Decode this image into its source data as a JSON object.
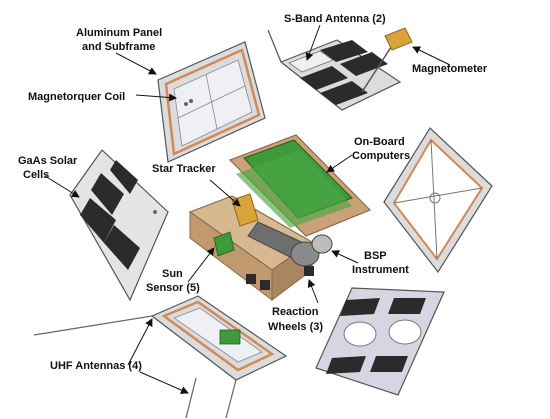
{
  "labels": {
    "aluminum_panel_line1": "Aluminum Panel",
    "aluminum_panel_line2": "and Subframe",
    "magnetorquer": "Magnetorquer Coil",
    "gaas_line1": "GaAs Solar",
    "gaas_line2": "Cells",
    "sband": "S-Band Antenna (2)",
    "magnetometer": "Magnetometer",
    "obc_line1": "On-Board",
    "obc_line2": "Computers",
    "star_tracker": "Star Tracker",
    "sun_sensor_line1": "Sun",
    "sun_sensor_line2": "Sensor (5)",
    "bsp_line1": "BSP",
    "bsp_line2": "Instrument",
    "reaction_line1": "Reaction",
    "reaction_line2": "Wheels (3)",
    "uhf": "UHF Antennas (4)"
  },
  "colors": {
    "panel_fill": "#dcdcdc",
    "panel_stroke": "#555555",
    "coil": "#d08a5a",
    "solar_cell": "#2b2b2b",
    "pcb_green": "#3f9a3a",
    "frame_tan": "#c9a27a",
    "frame_dark": "#8a6a48",
    "magnetometer_gold": "#d8a43a",
    "bsp_grey": "#7a7a7a"
  }
}
